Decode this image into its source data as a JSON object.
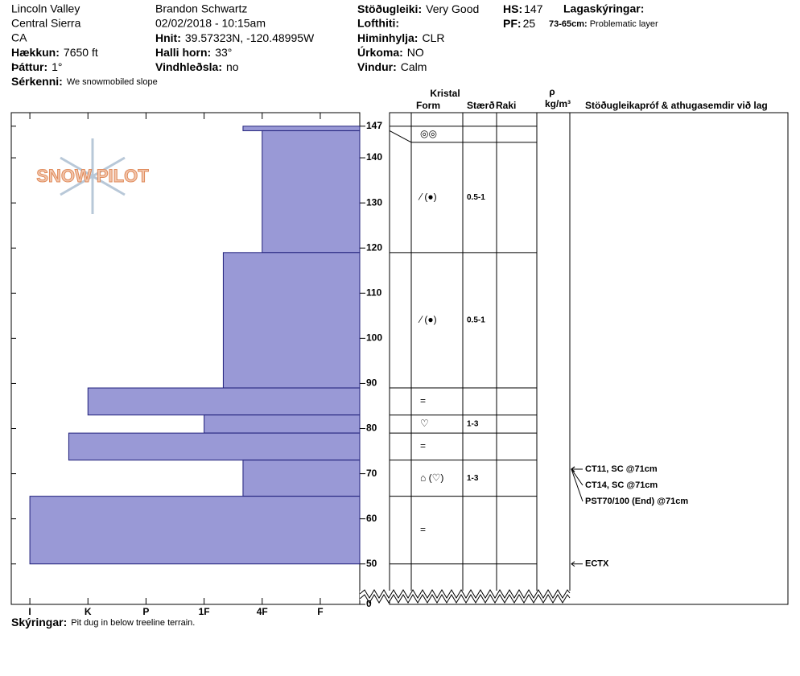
{
  "header": {
    "location": "Lincoln Valley",
    "range": "Central Sierra",
    "state": "CA",
    "elevation": {
      "label": "Hækkun:",
      "value": "7650 ft"
    },
    "aspect": {
      "label": "Þáttur:",
      "value": "1°"
    },
    "features": {
      "label": "Sérkenni:",
      "value": "We snowmobiled slope"
    },
    "observer": "Brandon Schwartz",
    "datetime": "02/02/2018 - 10:15am",
    "coordinates": {
      "label": "Hnit:",
      "value": "39.57323N, -120.48995W"
    },
    "slope": {
      "label": "Halli horn:",
      "value": "33°"
    },
    "wind_loading": {
      "label": "Vindhleðsla:",
      "value": "no"
    },
    "stability": {
      "label": "Stöðugleiki:",
      "value": "Very Good"
    },
    "air_temp": {
      "label": "Lofthiti:"
    },
    "sky": {
      "label": "Himinhylja:",
      "value": "CLR"
    },
    "precip": {
      "label": "Úrkoma:",
      "value": "NO"
    },
    "wind": {
      "label": "Vindur:",
      "value": "Calm"
    },
    "hs": {
      "label": "HS:",
      "value": 147
    },
    "pf": {
      "label": "PF:",
      "value": 25
    },
    "layer_notes": {
      "title": "Lagaskýringar:",
      "items": [
        {
          "range": "73-65cm:",
          "text": "Problematic layer"
        }
      ]
    }
  },
  "logo": "SNOW PILOT",
  "chart_data": {
    "type": "bar",
    "orientation": "horizontal",
    "color": "#9999d6",
    "edge_color": "#1f1f7a",
    "values": [
      2.33,
      2,
      2.67,
      5,
      3,
      5.33,
      2.33,
      6
    ],
    "depth_top": [
      147,
      146,
      119,
      89,
      83,
      79,
      73,
      65
    ],
    "depth_bottom": [
      146,
      119,
      89,
      83,
      79,
      73,
      65,
      50
    ],
    "xlim": [
      0.32,
      6.32
    ],
    "xticks": [
      {
        "value": 6,
        "label": "I"
      },
      {
        "value": 5,
        "label": "K"
      },
      {
        "value": 4,
        "label": "P"
      },
      {
        "value": 3,
        "label": "1F"
      },
      {
        "value": 2,
        "label": "4F"
      },
      {
        "value": 1,
        "label": "F"
      }
    ],
    "ylim": [
      43,
      150
    ],
    "yticks": [
      50,
      60,
      70,
      80,
      90,
      100,
      110,
      120,
      130,
      140,
      147,
      0
    ],
    "axis_break": true,
    "grid": false
  },
  "table": {
    "headers": {
      "crystal": "Kristal",
      "form": "Form",
      "size": "Stærð",
      "moisture": "Raki",
      "density_symbol": "ρ",
      "density_unit": "kg/m³",
      "tests": "Stöðugleikapróf & athugasemdir við lag"
    },
    "rows": [
      {
        "form": "◎◎"
      },
      {
        "form": "⁄ (●)",
        "size": "0.5-1"
      },
      {
        "form": "⁄ (●)",
        "size": "0.5-1"
      },
      {
        "form": "="
      },
      {
        "form": "♡",
        "size": "1-3"
      },
      {
        "form": "="
      },
      {
        "form": "⌂ (♡)",
        "size": "1-3"
      },
      {
        "form": "="
      }
    ]
  },
  "tests": [
    {
      "label": "CT11, SC @71cm",
      "depth": 71
    },
    {
      "label": "CT14, SC @71cm",
      "depth": 71
    },
    {
      "label": "PST70/100 (End) @71cm",
      "depth": 71
    },
    {
      "label": "ECTX",
      "depth": 50
    }
  ],
  "footer": {
    "label": "Skýringar:",
    "text": "Pit dug in below treeline terrain."
  }
}
